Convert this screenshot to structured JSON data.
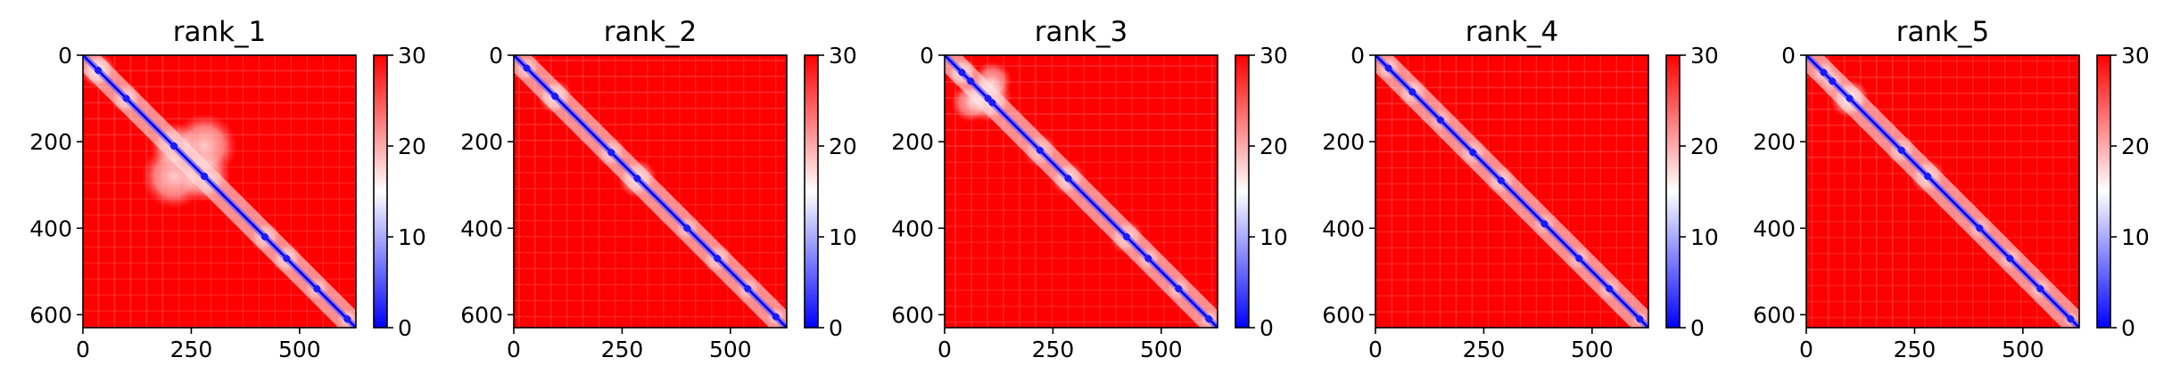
{
  "figure": {
    "colorbar": {
      "min": 0,
      "max": 30,
      "ticks": [
        0,
        10,
        20,
        30
      ],
      "colors": {
        "low": "#0000ff",
        "mid": "#ffffff",
        "high": "#ff0000"
      }
    }
  },
  "chart_data": [
    {
      "type": "heatmap",
      "title": "rank_1",
      "xlim": [
        0,
        630
      ],
      "ylim": [
        630,
        0
      ],
      "xticks": [
        0,
        250,
        500
      ],
      "yticks": [
        0,
        200,
        400,
        600
      ],
      "patches": [
        [
          35,
          35,
          40,
          0.55
        ],
        [
          100,
          100,
          35,
          0.45
        ],
        [
          210,
          210,
          55,
          0.45
        ],
        [
          280,
          280,
          60,
          0.5
        ],
        [
          210,
          280,
          75,
          0.5
        ],
        [
          280,
          210,
          75,
          0.5
        ],
        [
          420,
          420,
          35,
          0.4
        ],
        [
          470,
          470,
          35,
          0.45
        ],
        [
          540,
          540,
          30,
          0.35
        ],
        [
          610,
          610,
          25,
          0.4
        ]
      ]
    },
    {
      "type": "heatmap",
      "title": "rank_2",
      "xlim": [
        0,
        630
      ],
      "ylim": [
        630,
        0
      ],
      "xticks": [
        0,
        250,
        500
      ],
      "yticks": [
        0,
        200,
        400,
        600
      ],
      "patches": [
        [
          30,
          30,
          30,
          0.4
        ],
        [
          95,
          95,
          40,
          0.5
        ],
        [
          225,
          225,
          35,
          0.4
        ],
        [
          285,
          285,
          45,
          0.5
        ],
        [
          400,
          400,
          30,
          0.35
        ],
        [
          470,
          470,
          35,
          0.4
        ],
        [
          540,
          540,
          30,
          0.35
        ],
        [
          605,
          605,
          25,
          0.4
        ]
      ]
    },
    {
      "type": "heatmap",
      "title": "rank_3",
      "xlim": [
        0,
        630
      ],
      "ylim": [
        630,
        0
      ],
      "xticks": [
        0,
        250,
        500
      ],
      "yticks": [
        0,
        200,
        400,
        600
      ],
      "patches": [
        [
          40,
          40,
          35,
          0.5
        ],
        [
          100,
          100,
          55,
          0.55
        ],
        [
          60,
          110,
          45,
          0.45
        ],
        [
          110,
          60,
          45,
          0.45
        ],
        [
          220,
          220,
          40,
          0.35
        ],
        [
          285,
          285,
          40,
          0.45
        ],
        [
          420,
          420,
          40,
          0.4
        ],
        [
          470,
          470,
          30,
          0.35
        ],
        [
          540,
          540,
          30,
          0.35
        ],
        [
          610,
          610,
          25,
          0.35
        ]
      ]
    },
    {
      "type": "heatmap",
      "title": "rank_4",
      "xlim": [
        0,
        630
      ],
      "ylim": [
        630,
        0
      ],
      "xticks": [
        0,
        250,
        500
      ],
      "yticks": [
        0,
        200,
        400,
        600
      ],
      "patches": [
        [
          30,
          30,
          30,
          0.4
        ],
        [
          85,
          85,
          35,
          0.4
        ],
        [
          150,
          150,
          30,
          0.3
        ],
        [
          225,
          225,
          35,
          0.35
        ],
        [
          290,
          290,
          35,
          0.4
        ],
        [
          390,
          390,
          30,
          0.3
        ],
        [
          470,
          470,
          30,
          0.35
        ],
        [
          540,
          540,
          30,
          0.35
        ],
        [
          610,
          610,
          20,
          0.35
        ]
      ]
    },
    {
      "type": "heatmap",
      "title": "rank_5",
      "xlim": [
        0,
        630
      ],
      "ylim": [
        630,
        0
      ],
      "xticks": [
        0,
        250,
        500
      ],
      "yticks": [
        0,
        200,
        400,
        600
      ],
      "patches": [
        [
          40,
          40,
          30,
          0.4
        ],
        [
          100,
          100,
          45,
          0.55
        ],
        [
          60,
          60,
          30,
          0.35
        ],
        [
          220,
          220,
          35,
          0.35
        ],
        [
          280,
          280,
          40,
          0.45
        ],
        [
          400,
          400,
          30,
          0.3
        ],
        [
          470,
          470,
          30,
          0.35
        ],
        [
          540,
          540,
          30,
          0.35
        ],
        [
          610,
          610,
          20,
          0.35
        ]
      ]
    }
  ]
}
